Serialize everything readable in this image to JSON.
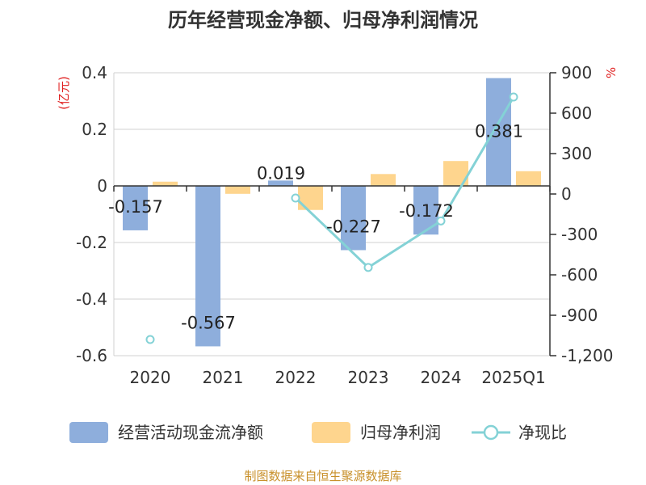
{
  "chart_data": {
    "type": "bar",
    "title": "历年经营现金净额、归母净利润情况",
    "categories": [
      "2020",
      "2021",
      "2022",
      "2023",
      "2024",
      "2025Q1"
    ],
    "y_left": {
      "unit": "(亿元)",
      "ylim": [
        -0.6,
        0.4
      ],
      "ticks": [
        "0.4",
        "0.2",
        "0",
        "-0.2",
        "-0.4",
        "-0.6"
      ],
      "tick_values": [
        0.4,
        0.2,
        0,
        -0.2,
        -0.4,
        -0.6
      ]
    },
    "y_right": {
      "unit": "%",
      "ylim": [
        -1200,
        900
      ],
      "ticks": [
        "900",
        "600",
        "300",
        "0",
        "-300",
        "-600",
        "-900",
        "-1,200"
      ],
      "tick_values": [
        900,
        600,
        300,
        0,
        -300,
        -600,
        -900,
        -1200
      ]
    },
    "series": [
      {
        "name": "经营活动现金流净额",
        "type": "bar",
        "axis": "left",
        "color": "#8eaedc",
        "values": [
          -0.157,
          -0.567,
          0.019,
          -0.227,
          -0.172,
          0.381
        ],
        "labels": [
          "-0.157",
          "-0.567",
          "0.019",
          "-0.227",
          "-0.172",
          "0.381"
        ]
      },
      {
        "name": "归母净利润",
        "type": "bar",
        "axis": "left",
        "color": "#fed58e",
        "values": [
          0.015,
          -0.028,
          -0.085,
          0.042,
          0.088,
          0.052
        ]
      },
      {
        "name": "净现比",
        "type": "line",
        "axis": "right",
        "color": "#84d2d6",
        "values": [
          -1080,
          null,
          -30,
          -545,
          -200,
          720
        ]
      }
    ]
  },
  "source": "制图数据来自恒生聚源数据库"
}
